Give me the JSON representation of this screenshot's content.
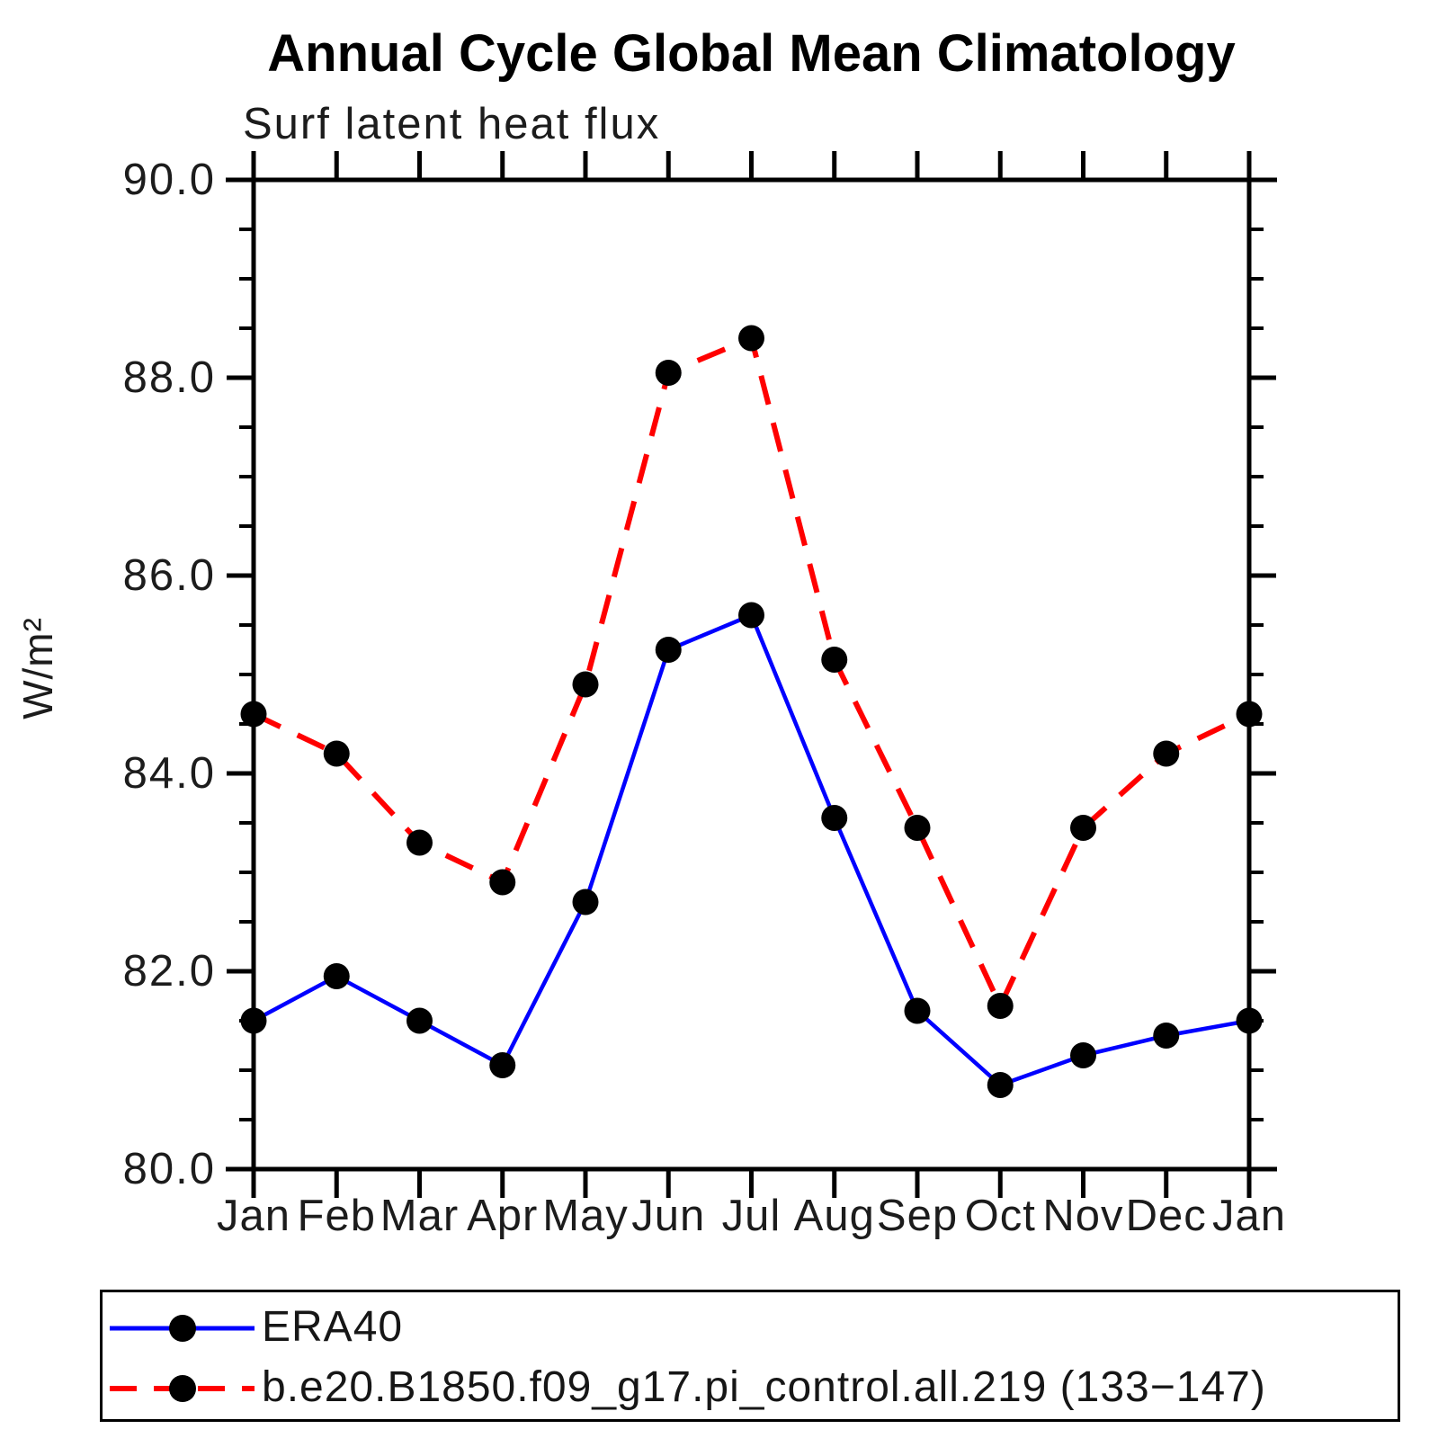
{
  "title": "Annual Cycle Global Mean Climatology",
  "subtitle": "Surf latent heat flux",
  "ylabel": "W/m²",
  "colors": {
    "era40_line": "#0000ff",
    "model_line": "#ff0000",
    "marker": "#000000",
    "axis": "#000000"
  },
  "chart_data": {
    "type": "line",
    "title": "Annual Cycle Global Mean Climatology",
    "subtitle": "Surf latent heat flux",
    "ylabel": "W/m²",
    "categories": [
      "Jan",
      "Feb",
      "Mar",
      "Apr",
      "May",
      "Jun",
      "Jul",
      "Aug",
      "Sep",
      "Oct",
      "Nov",
      "Dec",
      "Jan"
    ],
    "series": [
      {
        "name": "ERA40",
        "line_style": "solid",
        "color": "#0000ff",
        "marker": "filled-black-circle",
        "values": [
          81.5,
          81.95,
          81.5,
          81.05,
          82.7,
          85.25,
          85.6,
          83.55,
          81.6,
          80.85,
          81.15,
          81.35,
          81.5
        ]
      },
      {
        "name": "b.e20.B1850.f09_g17.pi_control.all.219 (133−147)",
        "line_style": "dashed",
        "color": "#ff0000",
        "marker": "filled-black-circle",
        "values": [
          84.6,
          84.2,
          83.3,
          82.9,
          84.9,
          88.05,
          88.4,
          85.15,
          83.45,
          81.65,
          83.45,
          84.2,
          84.6
        ]
      }
    ],
    "ylim": [
      80.0,
      90.0
    ],
    "ytick_major_step": 2.0,
    "ytick_minor_step": 0.5,
    "ytick_labels": [
      "90.0",
      "88.0",
      "86.0",
      "84.0",
      "82.0",
      "80.0"
    ],
    "grid": false,
    "legend_position": "bottom"
  },
  "legend": {
    "items": [
      {
        "label": "ERA40"
      },
      {
        "label": "b.e20.B1850.f09_g17.pi_control.all.219 (133−147)"
      }
    ]
  }
}
